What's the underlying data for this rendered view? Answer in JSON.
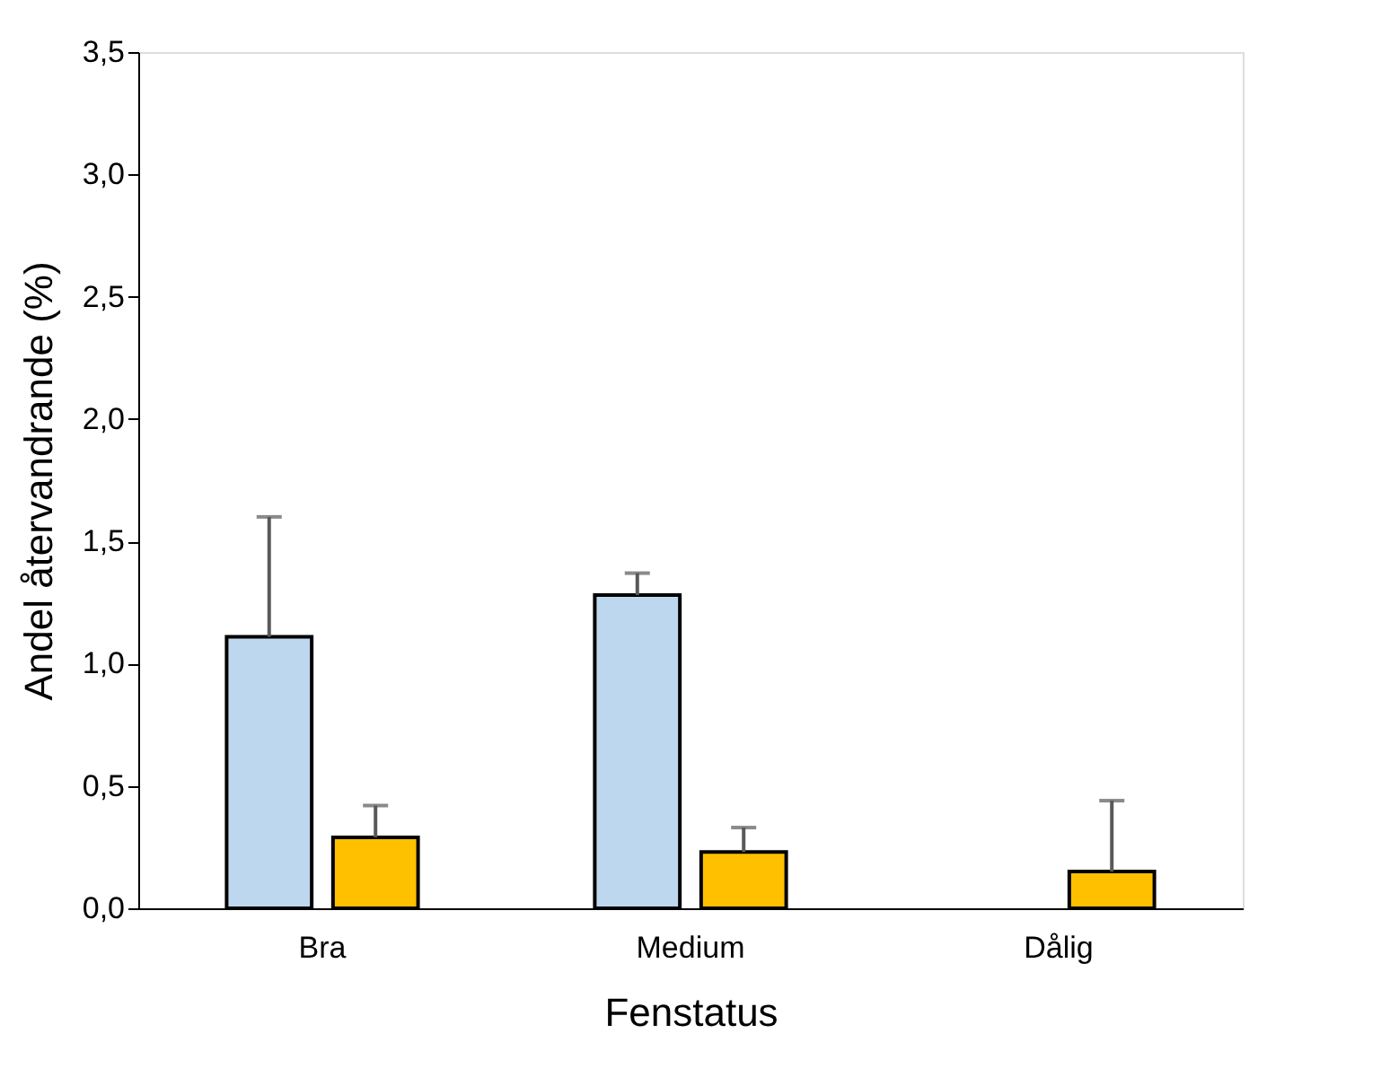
{
  "chart_data": {
    "type": "bar",
    "categories": [
      "Bra",
      "Medium",
      "Dålig"
    ],
    "series": [
      {
        "color": "#bdd7ee",
        "values": [
          1.11,
          1.28,
          null
        ],
        "errors": [
          [
            1.11,
            1.6
          ],
          [
            1.28,
            1.37
          ],
          null
        ]
      },
      {
        "color": "#ffc000",
        "values": [
          0.29,
          0.23,
          0.15
        ],
        "errors": [
          [
            0.29,
            0.42
          ],
          [
            0.23,
            0.33
          ],
          [
            0.15,
            0.44
          ]
        ]
      }
    ],
    "xlabel": "Fenstatus",
    "ylabel": "Andel återvandrande (%)",
    "ylim": [
      0,
      3.5
    ],
    "yticks": [
      {
        "value": 0,
        "label": "0,0"
      },
      {
        "value": 0.5,
        "label": "0,5"
      },
      {
        "value": 1,
        "label": "1,0"
      },
      {
        "value": 1.5,
        "label": "1,5"
      },
      {
        "value": 2,
        "label": "2,0"
      },
      {
        "value": 2.5,
        "label": "2,5"
      },
      {
        "value": 3,
        "label": "3,0"
      },
      {
        "value": 3.5,
        "label": "3,5"
      }
    ],
    "grid": false,
    "legend": false
  }
}
